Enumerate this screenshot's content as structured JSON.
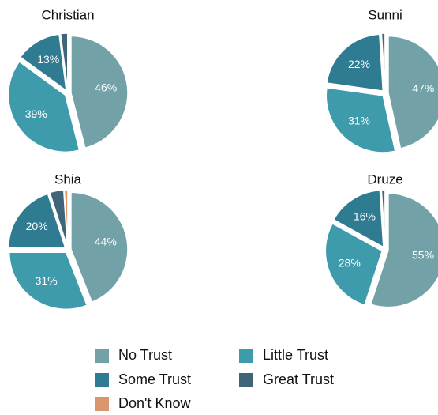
{
  "legend": {
    "categories": [
      "No Trust",
      "Little Trust",
      "Some Trust",
      "Great Trust",
      "Don't Know"
    ],
    "colors": [
      "#72a1a7",
      "#3e9bac",
      "#2e7b92",
      "#3f6678",
      "#d9956e"
    ]
  },
  "chart_data": [
    {
      "type": "pie",
      "title": "Christian",
      "categories": [
        "No Trust",
        "Little Trust",
        "Some Trust",
        "Great Trust"
      ],
      "values": [
        46,
        39,
        13,
        2
      ],
      "value_labels": [
        "46%",
        "39%",
        "13%",
        null
      ]
    },
    {
      "type": "pie",
      "title": "Sunni",
      "categories": [
        "No Trust",
        "Little Trust",
        "Some Trust",
        "Great Trust"
      ],
      "values": [
        47,
        31,
        22,
        1
      ],
      "value_labels": [
        "47%",
        "31%",
        "22%",
        null
      ]
    },
    {
      "type": "pie",
      "title": "Shia",
      "categories": [
        "No Trust",
        "Little Trust",
        "Some Trust",
        "Great Trust",
        "Don't Know"
      ],
      "values": [
        44,
        31,
        20,
        4,
        1
      ],
      "value_labels": [
        "44%",
        "31%",
        "20%",
        null,
        null
      ]
    },
    {
      "type": "pie",
      "title": "Druze",
      "categories": [
        "No Trust",
        "Little Trust",
        "Some Trust",
        "Great Trust"
      ],
      "values": [
        55,
        28,
        16,
        1
      ],
      "value_labels": [
        "55%",
        "28%",
        "16%",
        null
      ]
    }
  ]
}
